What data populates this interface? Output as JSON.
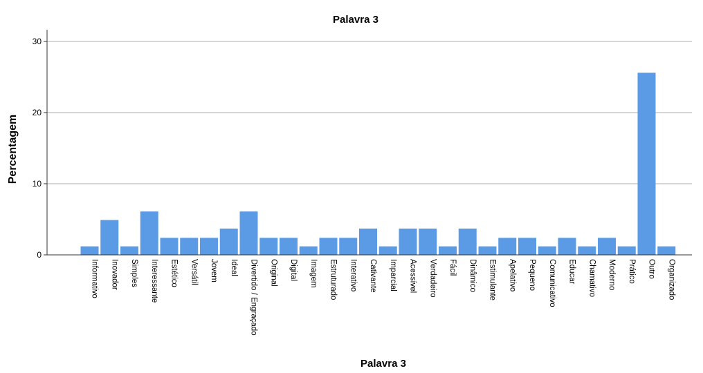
{
  "chart_data": {
    "type": "bar",
    "title": "Palavra 3",
    "xlabel": "Palavra 3",
    "ylabel": "Percentagem",
    "ylim": [
      0,
      31
    ],
    "yticks": [
      "0",
      "10",
      "20",
      "30"
    ],
    "grid": true,
    "bar_color": "#5b9be6",
    "categories": [
      "Informativo",
      "Inovador",
      "Simples",
      "Interessante",
      "Estético",
      "Versátil",
      "Jovem",
      "Ideal",
      "Divertido / Engraçado",
      "Original",
      "Digital",
      "Imagem",
      "Estruturado",
      "Interativo",
      "Cativante",
      "Imparcial",
      "Acessível",
      "Verdadeiro",
      "Fácil",
      "Dinâmico",
      "Estimulante",
      "Apelativo",
      "Pequeno",
      "Comunicativo",
      "Educar",
      "Chamativo",
      "Moderno",
      "Prático",
      "Outro",
      "Organizado"
    ],
    "values": [
      1.2,
      4.9,
      1.2,
      6.1,
      2.4,
      2.4,
      2.4,
      3.7,
      6.1,
      2.4,
      2.4,
      1.2,
      2.4,
      2.4,
      3.7,
      1.2,
      3.7,
      3.7,
      1.2,
      3.7,
      1.2,
      2.4,
      2.4,
      1.2,
      2.4,
      1.2,
      2.4,
      1.2,
      25.6,
      1.2
    ]
  }
}
